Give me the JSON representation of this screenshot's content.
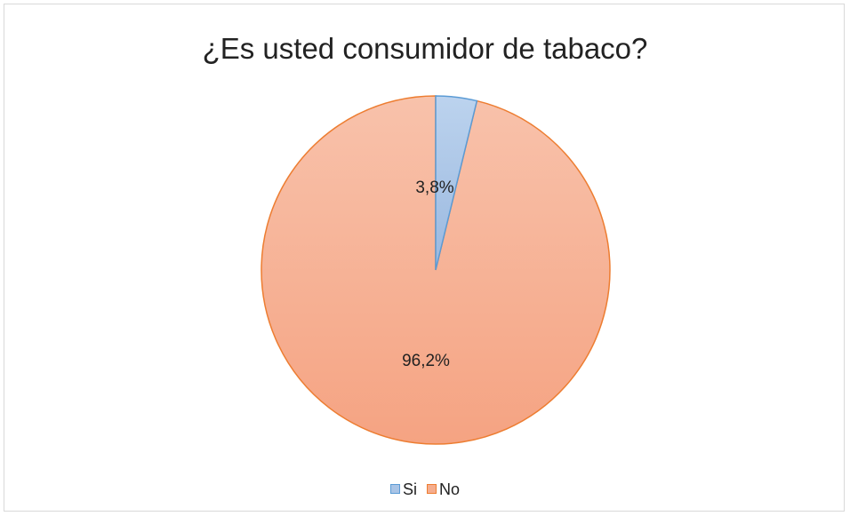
{
  "chart_data": {
    "type": "pie",
    "title": "¿Es usted consumidor de tabaco?",
    "categories": [
      "Si",
      "No"
    ],
    "values": [
      3.8,
      96.2
    ],
    "data_labels": [
      "3,8%",
      "96,2%"
    ],
    "legend_position": "bottom",
    "start_angle": "12 o'clock, clockwise",
    "colors": {
      "Si": {
        "fill": "#a9c4e6",
        "border": "#5b9bd5"
      },
      "No": {
        "fill": "#f5ad8e",
        "border": "#ed7d31"
      }
    }
  }
}
